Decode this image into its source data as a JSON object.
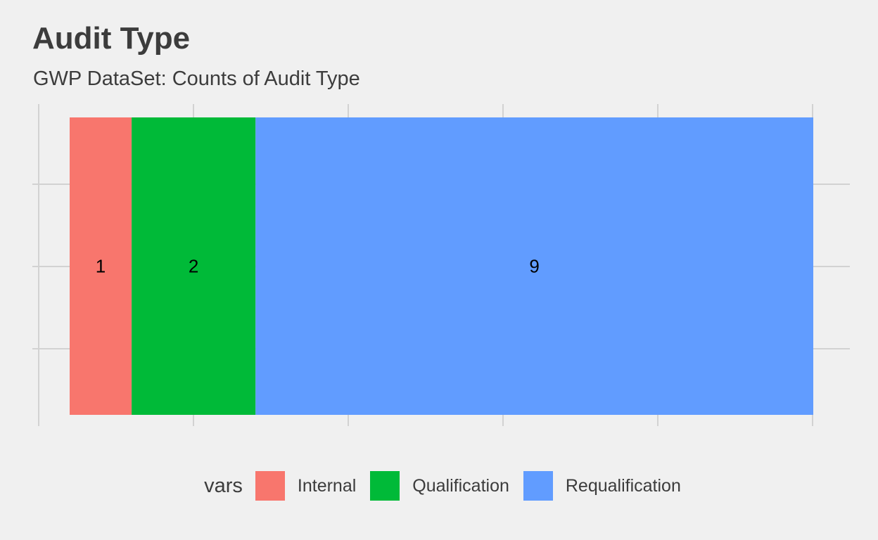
{
  "chart_data": {
    "type": "bar",
    "orientation": "horizontal",
    "stacked": true,
    "title": "Audit Type",
    "subtitle": "GWP DataSet: Counts of Audit Type",
    "xlabel": "",
    "ylabel": "",
    "xlim": [
      -0.2,
      12
    ],
    "grid": true,
    "legend_position": "bottom",
    "legend_title": "vars",
    "series": [
      {
        "name": "Internal",
        "value": 1,
        "label": "1",
        "color": "#f8766d"
      },
      {
        "name": "Qualification",
        "value": 2,
        "label": "2",
        "color": "#00ba38"
      },
      {
        "name": "Requalification",
        "value": 9,
        "label": "9",
        "color": "#619cff"
      }
    ]
  }
}
